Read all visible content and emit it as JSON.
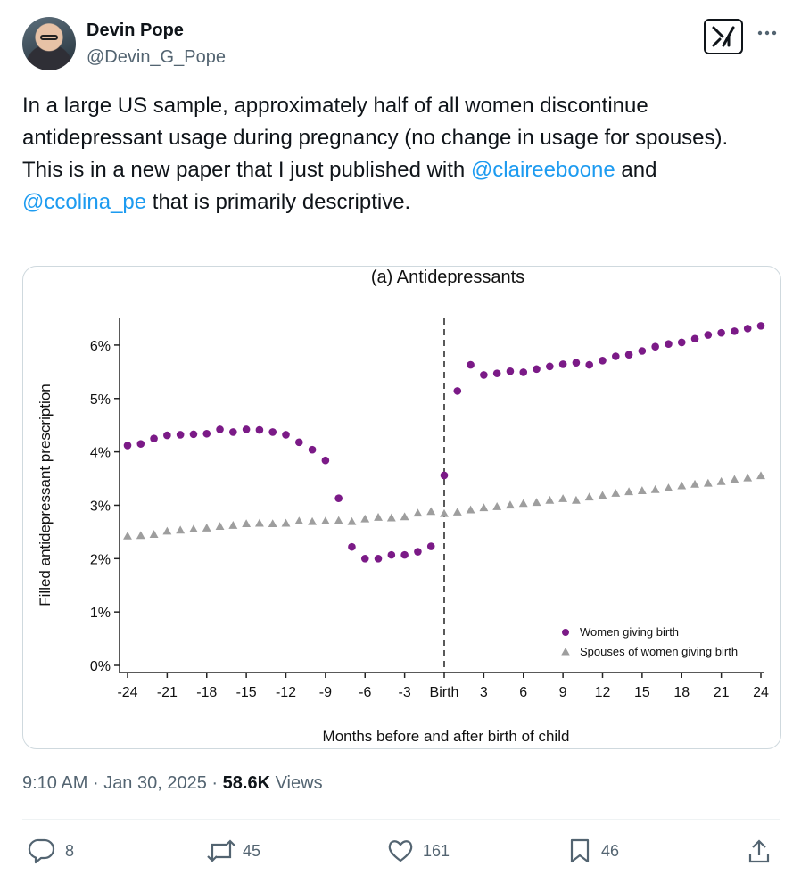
{
  "author": {
    "name": "Devin Pope",
    "handle": "@Devin_G_Pope"
  },
  "tweet": {
    "line1": "In a large US sample, approximately half of all women discontinue antidepressant usage during pregnancy (no change in usage for spouses).",
    "line2_prefix": "This is in a new paper that I just published with ",
    "mention1": "@claireeboone",
    "line2_mid": " and ",
    "mention2": "@ccolina_pe",
    "line2_suffix": " that is primarily descriptive."
  },
  "meta": {
    "time": "9:10 AM",
    "separator": "·",
    "date": "Jan 30, 2025",
    "views_count": "58.6K",
    "views_label": "Views"
  },
  "actions": {
    "replies": "8",
    "reposts": "45",
    "likes": "161",
    "bookmarks": "46"
  },
  "chart_data": {
    "type": "scatter",
    "title": "(a)  Antidepressants",
    "xlabel": "Months before and after birth of child",
    "ylabel": "Filled antidepressant prescription",
    "xlim": [
      -24,
      24
    ],
    "ylim": [
      0,
      6.5
    ],
    "x_ticks": [
      "-24",
      "-21",
      "-18",
      "-15",
      "-12",
      "-9",
      "-6",
      "-3",
      "Birth",
      "3",
      "6",
      "9",
      "12",
      "15",
      "18",
      "21",
      "24"
    ],
    "x_tick_values": [
      -24,
      -21,
      -18,
      -15,
      -12,
      -9,
      -6,
      -3,
      0,
      3,
      6,
      9,
      12,
      15,
      18,
      21,
      24
    ],
    "y_ticks": [
      "0%",
      "1%",
      "2%",
      "3%",
      "4%",
      "5%",
      "6%"
    ],
    "y_tick_values": [
      0,
      1,
      2,
      3,
      4,
      5,
      6
    ],
    "vline_at": 0,
    "legend_position": "bottom-right",
    "x": [
      -24,
      -23,
      -22,
      -21,
      -20,
      -19,
      -18,
      -17,
      -16,
      -15,
      -14,
      -13,
      -12,
      -11,
      -10,
      -9,
      -8,
      -7,
      -6,
      -5,
      -4,
      -3,
      -2,
      -1,
      0,
      1,
      2,
      3,
      4,
      5,
      6,
      7,
      8,
      9,
      10,
      11,
      12,
      13,
      14,
      15,
      16,
      17,
      18,
      19,
      20,
      21,
      22,
      23,
      24
    ],
    "series": [
      {
        "name": "Women giving birth",
        "marker": "circle",
        "color": "#7b1a87",
        "values": [
          4.12,
          4.15,
          4.25,
          4.31,
          4.32,
          4.33,
          4.34,
          4.42,
          4.37,
          4.42,
          4.41,
          4.37,
          4.32,
          4.18,
          4.04,
          3.84,
          3.13,
          2.22,
          2.0,
          2.0,
          2.07,
          2.07,
          2.13,
          2.23,
          3.56,
          5.14,
          5.63,
          5.44,
          5.47,
          5.51,
          5.49,
          5.55,
          5.6,
          5.64,
          5.67,
          5.63,
          5.71,
          5.79,
          5.82,
          5.89,
          5.97,
          6.02,
          6.05,
          6.12,
          6.19,
          6.23,
          6.26,
          6.31,
          6.36
        ]
      },
      {
        "name": "Spouses of women giving birth",
        "marker": "triangle",
        "color": "#9e9e9e",
        "values": [
          2.42,
          2.43,
          2.45,
          2.51,
          2.53,
          2.55,
          2.57,
          2.6,
          2.62,
          2.65,
          2.66,
          2.65,
          2.66,
          2.7,
          2.69,
          2.7,
          2.71,
          2.69,
          2.74,
          2.77,
          2.76,
          2.78,
          2.85,
          2.88,
          2.84,
          2.87,
          2.91,
          2.95,
          2.97,
          3.0,
          3.03,
          3.05,
          3.09,
          3.12,
          3.09,
          3.15,
          3.18,
          3.22,
          3.25,
          3.27,
          3.29,
          3.32,
          3.36,
          3.39,
          3.41,
          3.44,
          3.48,
          3.51,
          3.55
        ]
      }
    ]
  }
}
